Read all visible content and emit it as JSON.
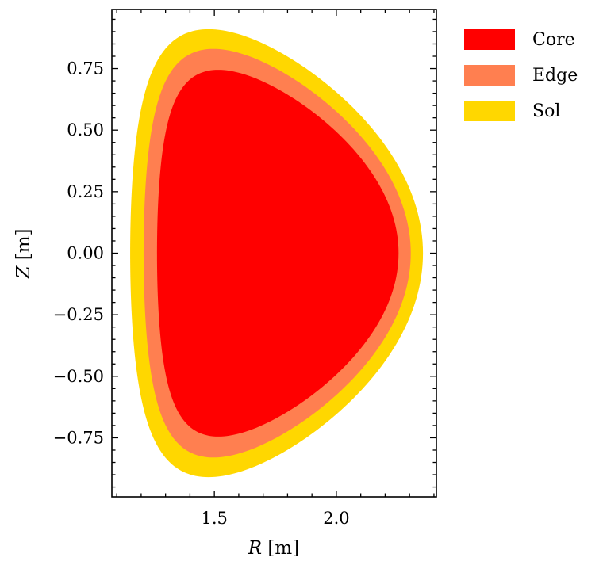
{
  "chart_data": {
    "type": "area",
    "title": "",
    "xlabel_var": "R",
    "xlabel_unit": " [m]",
    "ylabel_var": "Z",
    "ylabel_unit": " [m]",
    "xlim": [
      1.08,
      2.41
    ],
    "ylim": [
      -0.99,
      0.99
    ],
    "x_ticks": [
      1.5,
      2.0
    ],
    "x_tick_labels": [
      "1.5",
      "2.0"
    ],
    "x_minor_step": 0.1,
    "y_ticks": [
      -0.75,
      -0.5,
      -0.25,
      0.0,
      0.25,
      0.5,
      0.75
    ],
    "y_tick_labels": [
      "−0.75",
      "−0.50",
      "−0.25",
      "0.00",
      "0.25",
      "0.50",
      "0.75"
    ],
    "y_minor_step": 0.05,
    "grid": false,
    "legend_position": "outside-right-top",
    "series": [
      {
        "name": "Sol",
        "color": "#ffd700",
        "R_max": 2.355,
        "R_min": 1.155,
        "Z_top": 0.91,
        "Z_bottom": -0.91,
        "R_at_top": 1.465,
        "R_at_bottom": 1.465
      },
      {
        "name": "Edge",
        "color": "#ff7f50",
        "R_max": 2.305,
        "R_min": 1.21,
        "Z_top": 0.83,
        "Z_bottom": -0.83,
        "R_at_top": 1.485,
        "R_at_bottom": 1.485
      },
      {
        "name": "Core",
        "color": "#ff0000",
        "R_max": 2.255,
        "R_min": 1.265,
        "Z_top": 0.745,
        "Z_bottom": -0.745,
        "R_at_top": 1.505,
        "R_at_bottom": 1.505
      }
    ],
    "legend_order": [
      "Core",
      "Edge",
      "Sol"
    ]
  }
}
